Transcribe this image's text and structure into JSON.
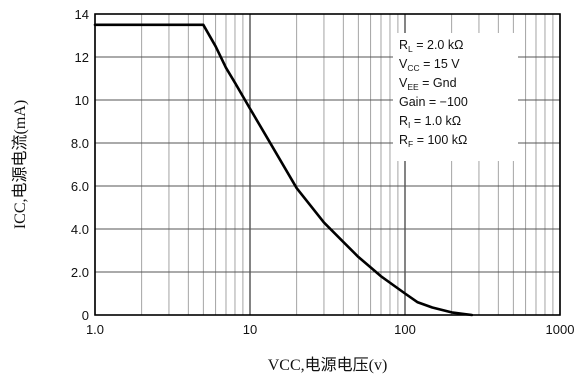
{
  "chart_data": {
    "type": "line",
    "title": "",
    "xlabel": "VCC,电源电压(v)",
    "ylabel": "ICC,电源电流(mA)",
    "xscale": "log",
    "xlim": [
      1.0,
      1000
    ],
    "ylim": [
      0,
      14
    ],
    "grid": true,
    "x_ticks": [
      {
        "value": 1,
        "label": "1.0"
      },
      {
        "value": 10,
        "label": "10"
      },
      {
        "value": 100,
        "label": "100"
      },
      {
        "value": 1000,
        "label": "1000"
      }
    ],
    "y_ticks": [
      {
        "value": 0,
        "label": "0"
      },
      {
        "value": 2,
        "label": "2.0"
      },
      {
        "value": 4,
        "label": "4.0"
      },
      {
        "value": 6,
        "label": "6.0"
      },
      {
        "value": 8,
        "label": "8.0"
      },
      {
        "value": 10,
        "label": "10"
      },
      {
        "value": 12,
        "label": "12"
      },
      {
        "value": 14,
        "label": "14"
      }
    ],
    "series": [
      {
        "color": "#000000",
        "x": [
          1.0,
          2.0,
          4.0,
          5.0,
          6.0,
          7.0,
          8.0,
          10.0,
          13.0,
          20.0,
          30.0,
          40.0,
          50.0,
          70.0,
          100.0,
          120.0,
          150.0,
          200.0,
          270.0
        ],
        "y": [
          13.5,
          13.5,
          13.5,
          13.5,
          12.5,
          11.5,
          10.8,
          9.6,
          8.2,
          5.9,
          4.3,
          3.4,
          2.7,
          1.8,
          1.0,
          0.6,
          0.35,
          0.12,
          0.0
        ]
      }
    ],
    "legend": {
      "placement": "top-right",
      "lines": [
        {
          "main": "R",
          "sub": "L",
          "rest": " = 2.0 kΩ"
        },
        {
          "main": "V",
          "sub": "CC",
          "rest": " = 15 V"
        },
        {
          "main": "V",
          "sub": "EE",
          "rest": " = Gnd"
        },
        {
          "main": "Gain",
          "sub": "",
          "rest": " = −100"
        },
        {
          "main": "R",
          "sub": "I",
          "rest": " = 1.0 kΩ"
        },
        {
          "main": "R",
          "sub": "F",
          "rest": " = 100 kΩ"
        }
      ]
    }
  }
}
